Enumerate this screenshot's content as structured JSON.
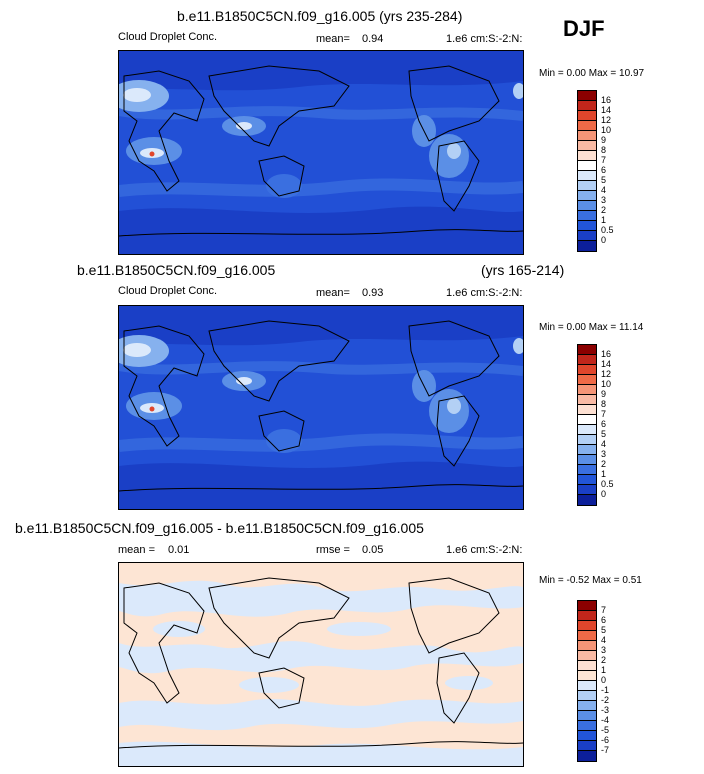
{
  "season": "DJF",
  "panels": [
    {
      "title": "b.e11.B1850C5CN.f09_g16.005 (yrs 235-284)",
      "title_right": "",
      "variable": "Cloud Droplet Conc.",
      "stat1_label": "mean=",
      "stat1_value": "0.94",
      "stat2_label": "",
      "stat2_value": "",
      "units": "1.e6 cm:S:-2:N:",
      "minmax": "Min =  0.00 Max = 10.97",
      "colorbar_labels": [
        "16",
        "14",
        "12",
        "10",
        "9",
        "8",
        "7",
        "6",
        "5",
        "4",
        "3",
        "2",
        "1",
        "0.5",
        "0"
      ],
      "colorbar_colors": [
        "#8b0000",
        "#c1261b",
        "#e0462c",
        "#ef6a47",
        "#f59577",
        "#f9baa4",
        "#fde0d2",
        "#ffffff",
        "#dbe9fb",
        "#b3d0f5",
        "#86b1ee",
        "#5b8fe6",
        "#3a6fe0",
        "#2255d8",
        "#1a3fc6",
        "#0c1f9a"
      ]
    },
    {
      "title": "b.e11.B1850C5CN.f09_g16.005",
      "title_right": "(yrs 165-214)",
      "variable": "Cloud Droplet Conc.",
      "stat1_label": "mean=",
      "stat1_value": "0.93",
      "stat2_label": "",
      "stat2_value": "",
      "units": "1.e6 cm:S:-2:N:",
      "minmax": "Min =  0.00 Max = 11.14",
      "colorbar_labels": [
        "16",
        "14",
        "12",
        "10",
        "9",
        "8",
        "7",
        "6",
        "5",
        "4",
        "3",
        "2",
        "1",
        "0.5",
        "0"
      ],
      "colorbar_colors": [
        "#8b0000",
        "#c1261b",
        "#e0462c",
        "#ef6a47",
        "#f59577",
        "#f9baa4",
        "#fde0d2",
        "#ffffff",
        "#dbe9fb",
        "#b3d0f5",
        "#86b1ee",
        "#5b8fe6",
        "#3a6fe0",
        "#2255d8",
        "#1a3fc6",
        "#0c1f9a"
      ]
    },
    {
      "title": "b.e11.B1850C5CN.f09_g16.005 - b.e11.B1850C5CN.f09_g16.005",
      "title_right": "",
      "variable": "",
      "stat1_label": "mean =",
      "stat1_value": "0.01",
      "stat2_label": "rmse =",
      "stat2_value": "0.05",
      "units": "1.e6 cm:S:-2:N:",
      "minmax": "Min = -0.52 Max =  0.51",
      "colorbar_labels": [
        "7",
        "6",
        "5",
        "4",
        "3",
        "2",
        "1",
        "0",
        "-1",
        "-2",
        "-3",
        "-4",
        "-5",
        "-6",
        "-7"
      ],
      "colorbar_colors": [
        "#8b0000",
        "#c1261b",
        "#e0462c",
        "#ef6a47",
        "#f59577",
        "#f9baa4",
        "#fde0d2",
        "#fde5d4",
        "#dbe9fb",
        "#b3d0f5",
        "#86b1ee",
        "#5b8fe6",
        "#3a6fe0",
        "#2255d8",
        "#1a3fc6",
        "#0c1f9a"
      ]
    }
  ]
}
